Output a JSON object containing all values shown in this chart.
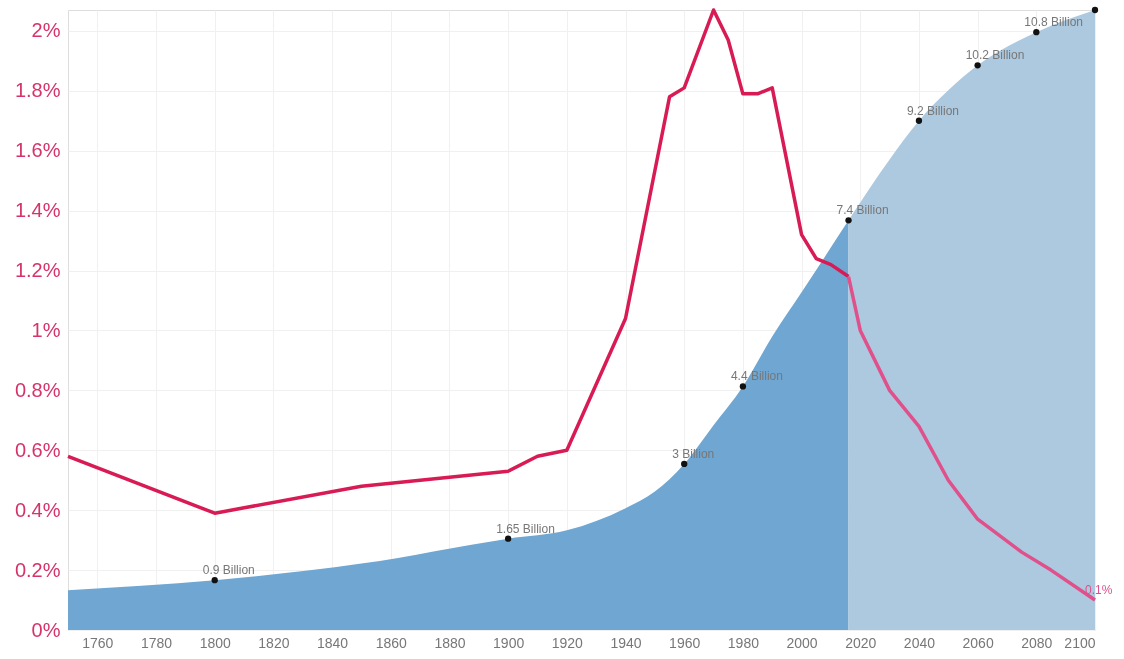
{
  "chart_data": {
    "type": "area",
    "xlim": [
      1750,
      2100
    ],
    "xticks": [
      1760,
      1780,
      1800,
      1820,
      1840,
      1860,
      1880,
      1900,
      1920,
      1940,
      1960,
      1980,
      2000,
      2020,
      2040,
      2060,
      2080,
      2100
    ],
    "ylim": [
      0,
      2.07
    ],
    "yticks": [
      {
        "value": 0,
        "label": "0%"
      },
      {
        "value": 0.2,
        "label": "0.2%"
      },
      {
        "value": 0.4,
        "label": "0.4%"
      },
      {
        "value": 0.6,
        "label": "0.6%"
      },
      {
        "value": 0.8,
        "label": "0.8%"
      },
      {
        "value": 1,
        "label": "1%"
      },
      {
        "value": 1.2,
        "label": "1.2%"
      },
      {
        "value": 1.4,
        "label": "1.4%"
      },
      {
        "value": 1.6,
        "label": "1.6%"
      },
      {
        "value": 1.8,
        "label": "1.8%"
      },
      {
        "value": 2,
        "label": "2%"
      }
    ],
    "y2lim": [
      0,
      11.2
    ],
    "grid": true,
    "series": [
      {
        "axis": "y2",
        "color": "#6fa6d2",
        "x": [
          1750,
          1800,
          1850,
          1900,
          1920,
          1940,
          1950,
          1960,
          1970,
          1980,
          1990,
          2000,
          2016
        ],
        "values": [
          0.72,
          0.9,
          1.2,
          1.65,
          1.8,
          2.2,
          2.5,
          3.0,
          3.7,
          4.4,
          5.3,
          6.1,
          7.4
        ]
      },
      {
        "axis": "y2",
        "color": "#adc9e0",
        "x": [
          2016,
          2030,
          2040,
          2050,
          2060,
          2080,
          2100
        ],
        "values": [
          7.4,
          8.5,
          9.2,
          9.75,
          10.2,
          10.8,
          11.2
        ]
      },
      {
        "type": "line",
        "axis": "y",
        "color": "#d81b55",
        "x": [
          1750,
          1800,
          1850,
          1900,
          1910,
          1920,
          1940,
          1955,
          1960,
          1970,
          1975,
          1980,
          1985,
          1990,
          2000,
          2005,
          2010,
          2016
        ],
        "values": [
          0.58,
          0.39,
          0.48,
          0.53,
          0.58,
          0.6,
          1.04,
          1.78,
          1.81,
          2.07,
          1.97,
          1.79,
          1.79,
          1.81,
          1.32,
          1.24,
          1.22,
          1.18
        ]
      },
      {
        "type": "line",
        "axis": "y",
        "color": "#e0508a",
        "x": [
          2016,
          2020,
          2030,
          2040,
          2050,
          2060,
          2075,
          2085,
          2100
        ],
        "values": [
          1.18,
          1.0,
          0.8,
          0.68,
          0.5,
          0.37,
          0.26,
          0.2,
          0.1
        ],
        "value_labels": [
          null,
          null,
          null,
          null,
          null,
          null,
          null,
          null,
          "0.1%"
        ]
      },
      {
        "type": "scatter",
        "axis": "y2",
        "color": "#111111",
        "marker": "circle",
        "x": [
          1800,
          1900,
          1960,
          1980,
          2016,
          2040,
          2060,
          2080,
          2100
        ],
        "values": [
          0.9,
          1.65,
          3.0,
          4.4,
          7.4,
          9.2,
          10.2,
          10.8,
          11.2
        ],
        "value_labels": [
          "0.9 Billion",
          "1.65 Billion",
          "3 Billion",
          "4.4 Billion",
          "7.4 Billion",
          "9.2 Billion",
          "10.2 Billion",
          "10.8 Billion",
          null
        ]
      }
    ]
  }
}
